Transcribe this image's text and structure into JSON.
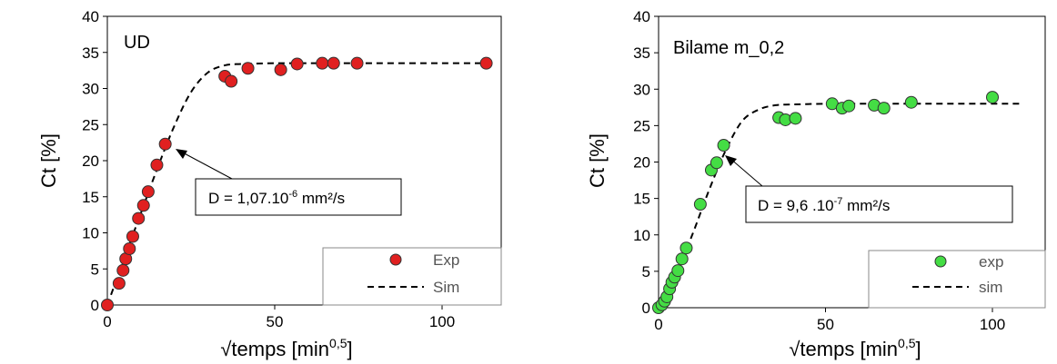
{
  "chart_data": [
    {
      "type": "scatter",
      "panel_label": "UD",
      "ylabel": "Ct [%]",
      "xlabel_base": "√temps [min",
      "xlabel_sup": "0,5",
      "xlabel_end": "]",
      "xlim": [
        0,
        115
      ],
      "ylim": [
        0,
        40
      ],
      "x_ticks": [
        "0",
        "50",
        "100"
      ],
      "y_ticks": [
        "0",
        "5",
        "10",
        "15",
        "20",
        "25",
        "30",
        "35",
        "40"
      ],
      "annotation": {
        "base": "D = 1,07.10",
        "sup": "-6",
        "end": " mm²/s"
      },
      "legend": {
        "position": "bottom-right",
        "exp_label": "Exp",
        "sim_label": "Sim"
      },
      "colors": {
        "exp": "#e02020",
        "sim": "#000000"
      },
      "series": [
        {
          "name": "Exp",
          "kind": "points",
          "x": [
            0,
            3.5,
            4.7,
            5.5,
            6.6,
            7.6,
            9.3,
            10.8,
            12.2,
            14.8,
            17.3,
            35.1,
            37.0,
            42.0,
            51.8,
            56.7,
            64.2,
            67.6,
            74.6,
            113.2
          ],
          "y": [
            0,
            3.0,
            4.8,
            6.4,
            7.8,
            9.5,
            12.0,
            13.8,
            15.7,
            19.4,
            22.3,
            31.7,
            31.0,
            32.8,
            32.6,
            33.4,
            33.5,
            33.5,
            33.5,
            33.5
          ]
        },
        {
          "name": "Sim",
          "kind": "dashed-line",
          "x": [
            0,
            5,
            10,
            15,
            20,
            25,
            30,
            35,
            40,
            50,
            60,
            80,
            100,
            115
          ],
          "y": [
            0,
            6.4,
            12.7,
            19.0,
            24.8,
            29.5,
            32.2,
            33.2,
            33.4,
            33.5,
            33.5,
            33.5,
            33.5,
            33.5
          ]
        }
      ]
    },
    {
      "type": "scatter",
      "panel_label": "Bilame m_0,2",
      "ylabel": "Ct [%]",
      "xlabel_base": "√temps [min",
      "xlabel_sup": "0,5",
      "xlabel_end": "]",
      "xlim": [
        0,
        115
      ],
      "ylim": [
        0,
        40
      ],
      "x_ticks": [
        "0",
        "50",
        "100"
      ],
      "y_ticks": [
        "0",
        "5",
        "10",
        "15",
        "20",
        "25",
        "30",
        "35",
        "40"
      ],
      "annotation": {
        "base": "D = 9,6 .10",
        "sup": "-7",
        "end": " mm²/s"
      },
      "legend": {
        "position": "bottom-right",
        "exp_label": "exp",
        "sim_label": "sim"
      },
      "colors": {
        "exp": "#44dd44",
        "sim": "#000000"
      },
      "series": [
        {
          "name": "exp",
          "kind": "points",
          "x": [
            0,
            1.0,
            1.8,
            2.5,
            3.3,
            4.0,
            4.8,
            5.8,
            7.0,
            8.3,
            12.5,
            15.8,
            17.4,
            19.5,
            36.0,
            38.0,
            41.0,
            52.0,
            55.0,
            57.0,
            64.6,
            67.5,
            75.7,
            100.0
          ],
          "y": [
            0,
            0.4,
            0.9,
            1.5,
            2.6,
            3.5,
            4.2,
            5.1,
            6.7,
            8.2,
            14.2,
            18.9,
            19.9,
            22.3,
            26.1,
            25.8,
            26.0,
            28.0,
            27.4,
            27.7,
            27.8,
            27.4,
            28.2,
            28.9
          ]
        },
        {
          "name": "sim",
          "kind": "dashed-line",
          "x": [
            0,
            5,
            10,
            15,
            20,
            25,
            30,
            35,
            40,
            50,
            60,
            80,
            100,
            109
          ],
          "y": [
            0,
            4.4,
            9.9,
            16.0,
            21.5,
            25.6,
            27.2,
            27.8,
            27.9,
            28.0,
            28.0,
            28.0,
            28.0,
            28.0
          ]
        }
      ]
    }
  ]
}
